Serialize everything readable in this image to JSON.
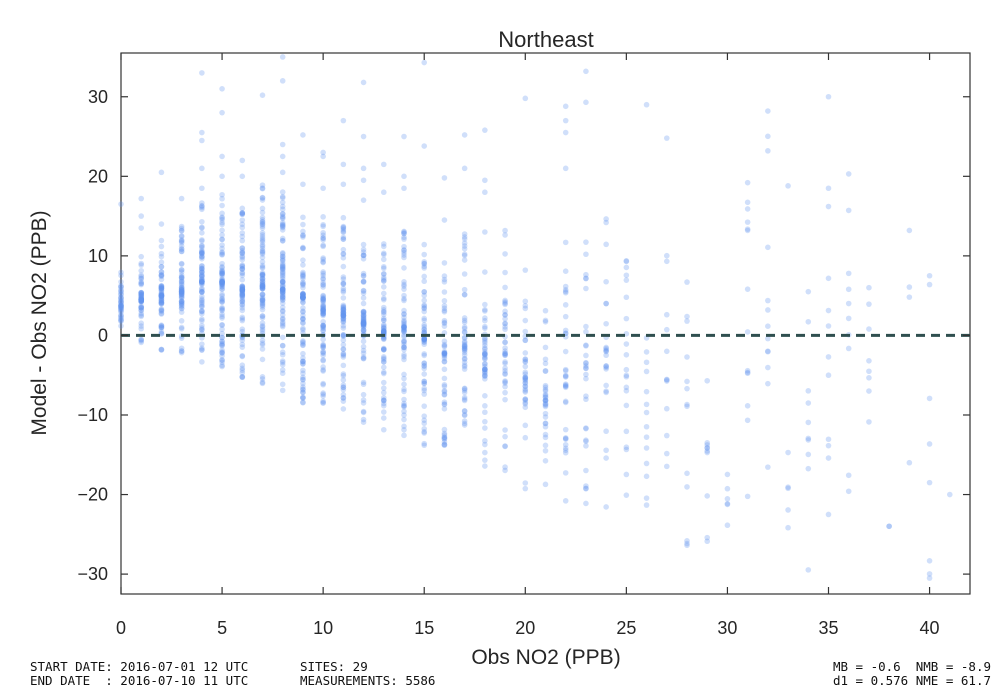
{
  "chart_data": {
    "type": "scatter",
    "title": "Northeast",
    "xlabel": "Obs NO2 (PPB)",
    "ylabel": "Model - Obs NO2 (PPB)",
    "xlim": [
      0,
      42
    ],
    "ylim": [
      -32.5,
      35.5
    ],
    "xticks": [
      0,
      5,
      10,
      15,
      20,
      25,
      30,
      35,
      40
    ],
    "yticks": [
      -30,
      -20,
      -10,
      0,
      10,
      20,
      30
    ],
    "xtick_labels": [
      "0",
      "5",
      "10",
      "15",
      "20",
      "25",
      "30",
      "35",
      "40"
    ],
    "ytick_labels": [
      "−30",
      "−20",
      "−10",
      "0",
      "10",
      "20",
      "30"
    ],
    "reference_line": {
      "y": 0,
      "style": "dashed",
      "color": "#2f4f4f"
    },
    "point_color": "#6495ed",
    "grid": false,
    "columns": [
      {
        "x": 0,
        "min": -0.5,
        "max": 8,
        "n": 40,
        "outliers": [
          16.5
        ]
      },
      {
        "x": 1,
        "min": -1,
        "max": 10,
        "n": 60,
        "outliers": [
          13.5,
          15,
          17.2
        ]
      },
      {
        "x": 2,
        "min": -2,
        "max": 12,
        "n": 70,
        "outliers": [
          14,
          20.5
        ]
      },
      {
        "x": 3,
        "min": -3,
        "max": 14,
        "n": 75,
        "outliers": [
          17.2
        ]
      },
      {
        "x": 4,
        "min": -3.5,
        "max": 17,
        "n": 85,
        "outliers": [
          18.5,
          21,
          24.5,
          25.5,
          33
        ]
      },
      {
        "x": 5,
        "min": -4.5,
        "max": 18,
        "n": 90,
        "outliers": [
          20,
          22.5,
          28,
          31
        ]
      },
      {
        "x": 6,
        "min": -5.5,
        "max": 17,
        "n": 90,
        "outliers": [
          20,
          22
        ]
      },
      {
        "x": 7,
        "min": -6.5,
        "max": 19,
        "n": 95,
        "outliers": [
          30.2
        ]
      },
      {
        "x": 8,
        "min": -7.5,
        "max": 19,
        "n": 95,
        "outliers": [
          20.5,
          22.5,
          24,
          32,
          35
        ]
      },
      {
        "x": 9,
        "min": -8.5,
        "max": 18,
        "n": 90,
        "outliers": [
          19,
          25.2
        ]
      },
      {
        "x": 10,
        "min": -9.5,
        "max": 16,
        "n": 85,
        "outliers": [
          18.5,
          22.5,
          23
        ]
      },
      {
        "x": 11,
        "min": -10,
        "max": 15,
        "n": 80,
        "outliers": [
          19,
          21.5,
          27
        ]
      },
      {
        "x": 12,
        "min": -11,
        "max": 14,
        "n": 75,
        "outliers": [
          17,
          19.5,
          21,
          25,
          31.8
        ]
      },
      {
        "x": 13,
        "min": -12,
        "max": 13,
        "n": 75,
        "outliers": [
          18,
          21.5
        ]
      },
      {
        "x": 14,
        "min": -13,
        "max": 15,
        "n": 70,
        "outliers": [
          18.5,
          20,
          25
        ]
      },
      {
        "x": 15,
        "min": -14,
        "max": 13,
        "n": 65,
        "outliers": [
          23.8,
          34.3
        ]
      },
      {
        "x": 16,
        "min": -14.5,
        "max": 10,
        "n": 55,
        "outliers": [
          14.5,
          19.8
        ]
      },
      {
        "x": 17,
        "min": -15.5,
        "max": 13,
        "n": 55,
        "outliers": [
          21,
          25.2
        ]
      },
      {
        "x": 18,
        "min": -16.5,
        "max": 8,
        "n": 50,
        "outliers": [
          13,
          18,
          19.5,
          25.8
        ]
      },
      {
        "x": 19,
        "min": -18,
        "max": 13.5,
        "n": 45,
        "outliers": []
      },
      {
        "x": 20,
        "min": -19.5,
        "max": 8.5,
        "n": 40,
        "outliers": [
          29.8
        ]
      },
      {
        "x": 21,
        "min": -19,
        "max": 3.8,
        "n": 35,
        "outliers": []
      },
      {
        "x": 22,
        "min": -21,
        "max": 13,
        "n": 35,
        "outliers": [
          21,
          25.5,
          27,
          28.8
        ]
      },
      {
        "x": 23,
        "min": -22,
        "max": 14,
        "n": 30,
        "outliers": [
          29.3,
          33.2
        ]
      },
      {
        "x": 24,
        "min": -22.5,
        "max": 15,
        "n": 25,
        "outliers": []
      },
      {
        "x": 25,
        "min": -21.5,
        "max": 11.5,
        "n": 20,
        "outliers": [
          4.8
        ]
      },
      {
        "x": 26,
        "min": -24,
        "max": 7,
        "n": 14,
        "outliers": [
          29
        ]
      },
      {
        "x": 27,
        "min": -23.5,
        "max": 12.5,
        "n": 12,
        "outliers": [
          24.8
        ]
      },
      {
        "x": 28,
        "min": -26.5,
        "max": 13,
        "n": 12,
        "outliers": [
          1.8
        ]
      },
      {
        "x": 29,
        "min": -27.5,
        "max": 0.5,
        "n": 10,
        "outliers": []
      },
      {
        "x": 30,
        "min": -27.5,
        "max": -16,
        "n": 6,
        "outliers": []
      },
      {
        "x": 31,
        "min": -29,
        "max": 19.5,
        "n": 12,
        "outliers": [
          13.2,
          19.2
        ]
      },
      {
        "x": 32,
        "min": -29,
        "max": 28.2,
        "n": 10,
        "outliers": [
          23.2,
          28.2,
          3.2
        ]
      },
      {
        "x": 33,
        "min": -28,
        "max": -13,
        "n": 5,
        "outliers": [
          18.8
        ]
      },
      {
        "x": 34,
        "min": -32,
        "max": 5.5,
        "n": 8,
        "outliers": [
          -8.5,
          5.5
        ]
      },
      {
        "x": 35,
        "min": -27,
        "max": 30,
        "n": 10,
        "outliers": [
          -5,
          30
        ]
      },
      {
        "x": 36,
        "min": -21,
        "max": 20.5,
        "n": 7,
        "outliers": [
          5.8,
          7.8,
          20.3
        ]
      },
      {
        "x": 37,
        "min": -15,
        "max": 6,
        "n": 6,
        "outliers": [
          0.8,
          6
        ]
      },
      {
        "x": 38,
        "min": -25,
        "max": -23,
        "n": 2,
        "outliers": []
      },
      {
        "x": 39,
        "min": -21,
        "max": 13,
        "n": 2,
        "outliers": [
          13.2,
          -16
        ]
      },
      {
        "x": 40,
        "min": -32,
        "max": 7.5,
        "n": 5,
        "outliers": [
          -30.5,
          7.5,
          -18.5
        ]
      },
      {
        "x": 41,
        "min": -20,
        "max": -20,
        "n": 1,
        "outliers": []
      }
    ]
  },
  "footer": {
    "start_date": "START DATE: 2016-07-01 12 UTC",
    "end_date": "END DATE  : 2016-07-10 11 UTC",
    "sites": "SITES: 29",
    "measurements": "MEASUREMENTS: 5586",
    "stats_line1": "MB = -0.6  NMB = -8.9",
    "stats_line2": "d1 = 0.576 NME = 61.7"
  }
}
